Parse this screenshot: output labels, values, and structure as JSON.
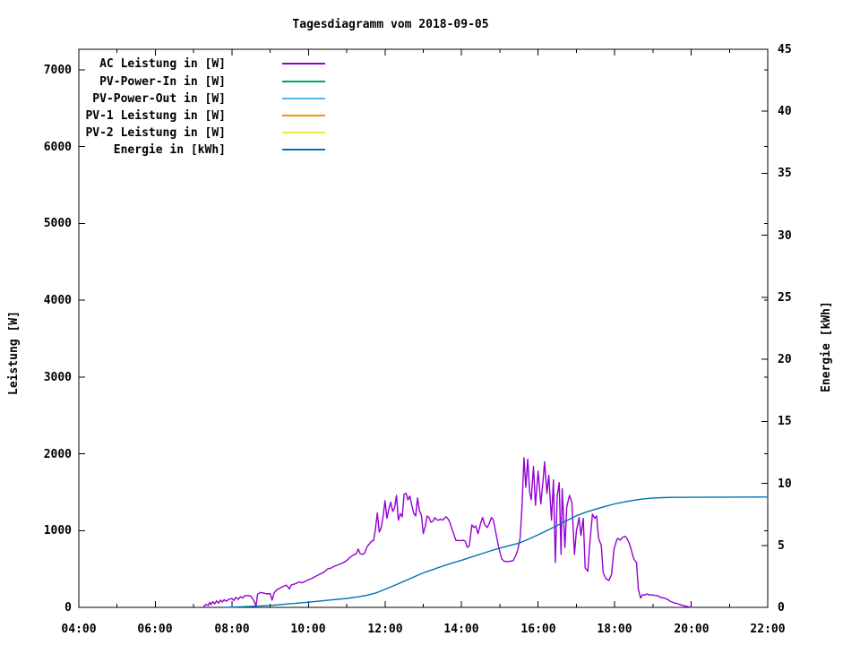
{
  "title": "Tagesdiagramm vom 2018-09-05",
  "axes": {
    "y1_label": "Leistung [W]",
    "y2_label": "Energie [kWh]",
    "y1_ticks": [
      "0",
      "1000",
      "2000",
      "3000",
      "4000",
      "5000",
      "6000",
      "7000"
    ],
    "y2_ticks": [
      "0",
      "5",
      "10",
      "15",
      "20",
      "25",
      "30",
      "35",
      "40",
      "45"
    ],
    "x_ticks": [
      "04:00",
      "06:00",
      "08:00",
      "10:00",
      "12:00",
      "14:00",
      "16:00",
      "18:00",
      "20:00",
      "22:00"
    ]
  },
  "legend": [
    {
      "label": "AC Leistung in [W]",
      "color": "#9400d3"
    },
    {
      "label": "PV-Power-In in [W]",
      "color": "#009e73"
    },
    {
      "label": "PV-Power-Out in [W]",
      "color": "#56b4e9"
    },
    {
      "label": "PV-1 Leistung in [W]",
      "color": "#e69f00"
    },
    {
      "label": "PV-2 Leistung in [W]",
      "color": "#f0e442"
    },
    {
      "label": "Energie in [kWh]",
      "color": "#0072b2"
    }
  ],
  "chart_data": {
    "type": "line",
    "title": "Tagesdiagramm vom 2018-09-05",
    "xlabel": "",
    "y1label": "Leistung [W]",
    "y2label": "Energie [kWh]",
    "x_range_hours": [
      4,
      22
    ],
    "y1_range": [
      0,
      7000
    ],
    "y2_range": [
      0,
      45
    ],
    "grid": false,
    "legend_position": "inside-top-left",
    "x_tick_labels": [
      "04:00",
      "06:00",
      "08:00",
      "10:00",
      "12:00",
      "14:00",
      "16:00",
      "18:00",
      "20:00",
      "22:00"
    ],
    "series": [
      {
        "name": "AC Leistung in [W]",
        "axis": "y1",
        "color": "#9400d3",
        "points": [
          [
            7.25,
            0
          ],
          [
            7.32,
            40
          ],
          [
            7.38,
            25
          ],
          [
            7.42,
            65
          ],
          [
            7.45,
            35
          ],
          [
            7.5,
            75
          ],
          [
            7.55,
            45
          ],
          [
            7.6,
            85
          ],
          [
            7.65,
            55
          ],
          [
            7.7,
            95
          ],
          [
            7.75,
            70
          ],
          [
            7.8,
            100
          ],
          [
            7.85,
            80
          ],
          [
            7.92,
            105
          ],
          [
            8.0,
            115
          ],
          [
            8.05,
            90
          ],
          [
            8.1,
            130
          ],
          [
            8.17,
            105
          ],
          [
            8.22,
            140
          ],
          [
            8.28,
            120
          ],
          [
            8.33,
            150
          ],
          [
            8.42,
            155
          ],
          [
            8.5,
            145
          ],
          [
            8.58,
            80
          ],
          [
            8.63,
            15
          ],
          [
            8.67,
            170
          ],
          [
            8.75,
            195
          ],
          [
            8.83,
            185
          ],
          [
            8.92,
            175
          ],
          [
            9.0,
            180
          ],
          [
            9.05,
            95
          ],
          [
            9.1,
            185
          ],
          [
            9.17,
            230
          ],
          [
            9.25,
            250
          ],
          [
            9.33,
            270
          ],
          [
            9.42,
            290
          ],
          [
            9.5,
            240
          ],
          [
            9.55,
            290
          ],
          [
            9.67,
            310
          ],
          [
            9.75,
            330
          ],
          [
            9.83,
            320
          ],
          [
            9.92,
            340
          ],
          [
            10.0,
            360
          ],
          [
            10.08,
            375
          ],
          [
            10.17,
            400
          ],
          [
            10.25,
            420
          ],
          [
            10.33,
            440
          ],
          [
            10.42,
            465
          ],
          [
            10.5,
            500
          ],
          [
            10.58,
            510
          ],
          [
            10.67,
            535
          ],
          [
            10.75,
            550
          ],
          [
            10.83,
            565
          ],
          [
            10.92,
            585
          ],
          [
            11.0,
            610
          ],
          [
            11.08,
            650
          ],
          [
            11.17,
            680
          ],
          [
            11.25,
            700
          ],
          [
            11.3,
            760
          ],
          [
            11.35,
            700
          ],
          [
            11.42,
            690
          ],
          [
            11.47,
            710
          ],
          [
            11.53,
            790
          ],
          [
            11.6,
            830
          ],
          [
            11.65,
            865
          ],
          [
            11.7,
            870
          ],
          [
            11.75,
            1020
          ],
          [
            11.8,
            1230
          ],
          [
            11.85,
            980
          ],
          [
            11.9,
            1040
          ],
          [
            11.95,
            1180
          ],
          [
            12.0,
            1390
          ],
          [
            12.05,
            1160
          ],
          [
            12.1,
            1280
          ],
          [
            12.15,
            1370
          ],
          [
            12.2,
            1250
          ],
          [
            12.25,
            1300
          ],
          [
            12.3,
            1460
          ],
          [
            12.35,
            1135
          ],
          [
            12.4,
            1220
          ],
          [
            12.45,
            1180
          ],
          [
            12.5,
            1475
          ],
          [
            12.55,
            1485
          ],
          [
            12.6,
            1400
          ],
          [
            12.65,
            1450
          ],
          [
            12.7,
            1330
          ],
          [
            12.75,
            1225
          ],
          [
            12.8,
            1190
          ],
          [
            12.85,
            1425
          ],
          [
            12.9,
            1260
          ],
          [
            12.95,
            1200
          ],
          [
            13.0,
            960
          ],
          [
            13.05,
            1050
          ],
          [
            13.1,
            1190
          ],
          [
            13.15,
            1170
          ],
          [
            13.2,
            1110
          ],
          [
            13.25,
            1120
          ],
          [
            13.3,
            1170
          ],
          [
            13.35,
            1140
          ],
          [
            13.4,
            1135
          ],
          [
            13.45,
            1150
          ],
          [
            13.5,
            1135
          ],
          [
            13.55,
            1160
          ],
          [
            13.6,
            1180
          ],
          [
            13.65,
            1150
          ],
          [
            13.7,
            1100
          ],
          [
            13.75,
            1020
          ],
          [
            13.8,
            950
          ],
          [
            13.85,
            875
          ],
          [
            13.92,
            870
          ],
          [
            14.0,
            870
          ],
          [
            14.05,
            875
          ],
          [
            14.1,
            860
          ],
          [
            14.15,
            780
          ],
          [
            14.2,
            800
          ],
          [
            14.27,
            1075
          ],
          [
            14.32,
            1040
          ],
          [
            14.37,
            1060
          ],
          [
            14.43,
            960
          ],
          [
            14.5,
            1100
          ],
          [
            14.55,
            1170
          ],
          [
            14.6,
            1080
          ],
          [
            14.67,
            1040
          ],
          [
            14.72,
            1090
          ],
          [
            14.78,
            1170
          ],
          [
            14.83,
            1140
          ],
          [
            14.9,
            960
          ],
          [
            14.97,
            780
          ],
          [
            15.05,
            630
          ],
          [
            15.12,
            600
          ],
          [
            15.2,
            595
          ],
          [
            15.27,
            600
          ],
          [
            15.35,
            610
          ],
          [
            15.42,
            680
          ],
          [
            15.47,
            750
          ],
          [
            15.53,
            900
          ],
          [
            15.58,
            1310
          ],
          [
            15.63,
            1950
          ],
          [
            15.68,
            1565
          ],
          [
            15.73,
            1930
          ],
          [
            15.78,
            1500
          ],
          [
            15.82,
            1400
          ],
          [
            15.88,
            1835
          ],
          [
            15.93,
            1330
          ],
          [
            16.0,
            1775
          ],
          [
            16.07,
            1345
          ],
          [
            16.12,
            1600
          ],
          [
            16.17,
            1895
          ],
          [
            16.23,
            1485
          ],
          [
            16.28,
            1720
          ],
          [
            16.35,
            1135
          ],
          [
            16.4,
            1660
          ],
          [
            16.45,
            585
          ],
          [
            16.5,
            1450
          ],
          [
            16.55,
            1625
          ],
          [
            16.6,
            690
          ],
          [
            16.63,
            1545
          ],
          [
            16.7,
            780
          ],
          [
            16.75,
            1310
          ],
          [
            16.82,
            1460
          ],
          [
            16.88,
            1370
          ],
          [
            16.95,
            690
          ],
          [
            17.0,
            995
          ],
          [
            17.07,
            1170
          ],
          [
            17.12,
            935
          ],
          [
            17.18,
            1160
          ],
          [
            17.23,
            515
          ],
          [
            17.3,
            470
          ],
          [
            17.35,
            820
          ],
          [
            17.42,
            1215
          ],
          [
            17.48,
            1160
          ],
          [
            17.53,
            1190
          ],
          [
            17.58,
            900
          ],
          [
            17.65,
            805
          ],
          [
            17.7,
            455
          ],
          [
            17.77,
            375
          ],
          [
            17.85,
            350
          ],
          [
            17.92,
            430
          ],
          [
            17.98,
            750
          ],
          [
            18.05,
            870
          ],
          [
            18.08,
            900
          ],
          [
            18.15,
            875
          ],
          [
            18.2,
            910
          ],
          [
            18.27,
            925
          ],
          [
            18.32,
            900
          ],
          [
            18.38,
            840
          ],
          [
            18.45,
            725
          ],
          [
            18.5,
            630
          ],
          [
            18.57,
            585
          ],
          [
            18.62,
            235
          ],
          [
            18.68,
            120
          ],
          [
            18.73,
            165
          ],
          [
            18.78,
            160
          ],
          [
            18.85,
            175
          ],
          [
            18.92,
            160
          ],
          [
            18.97,
            165
          ],
          [
            19.05,
            155
          ],
          [
            19.13,
            150
          ],
          [
            19.2,
            130
          ],
          [
            19.3,
            120
          ],
          [
            19.38,
            105
          ],
          [
            19.45,
            80
          ],
          [
            19.55,
            60
          ],
          [
            19.65,
            47
          ],
          [
            19.75,
            30
          ],
          [
            19.85,
            15
          ],
          [
            19.93,
            8
          ],
          [
            20.0,
            0
          ]
        ]
      },
      {
        "name": "PV-Power-In in [W]",
        "axis": "y1",
        "color": "#009e73",
        "points": []
      },
      {
        "name": "PV-Power-Out in [W]",
        "axis": "y1",
        "color": "#56b4e9",
        "points": []
      },
      {
        "name": "PV-1 Leistung in [W]",
        "axis": "y1",
        "color": "#e69f00",
        "points": []
      },
      {
        "name": "PV-2 Leistung in [W]",
        "axis": "y1",
        "color": "#f0e442",
        "points": []
      },
      {
        "name": "Energie in [kWh]",
        "axis": "y2",
        "color": "#0072b2",
        "points": [
          [
            7.8,
            0
          ],
          [
            8.0,
            0.02
          ],
          [
            8.5,
            0.08
          ],
          [
            9.0,
            0.16
          ],
          [
            9.5,
            0.28
          ],
          [
            10.0,
            0.42
          ],
          [
            10.5,
            0.57
          ],
          [
            11.0,
            0.72
          ],
          [
            11.25,
            0.82
          ],
          [
            11.5,
            0.95
          ],
          [
            11.75,
            1.15
          ],
          [
            12.0,
            1.45
          ],
          [
            12.25,
            1.78
          ],
          [
            12.5,
            2.1
          ],
          [
            12.75,
            2.45
          ],
          [
            13.0,
            2.78
          ],
          [
            13.25,
            3.05
          ],
          [
            13.5,
            3.32
          ],
          [
            13.75,
            3.57
          ],
          [
            14.0,
            3.8
          ],
          [
            14.25,
            4.05
          ],
          [
            14.5,
            4.3
          ],
          [
            14.75,
            4.55
          ],
          [
            15.0,
            4.78
          ],
          [
            15.25,
            4.98
          ],
          [
            15.5,
            5.18
          ],
          [
            15.75,
            5.5
          ],
          [
            16.0,
            5.85
          ],
          [
            16.25,
            6.22
          ],
          [
            16.5,
            6.6
          ],
          [
            16.75,
            7.0
          ],
          [
            17.0,
            7.38
          ],
          [
            17.25,
            7.68
          ],
          [
            17.5,
            7.92
          ],
          [
            17.75,
            8.14
          ],
          [
            18.0,
            8.34
          ],
          [
            18.25,
            8.5
          ],
          [
            18.5,
            8.64
          ],
          [
            18.75,
            8.75
          ],
          [
            19.0,
            8.82
          ],
          [
            19.25,
            8.85
          ],
          [
            19.5,
            8.87
          ],
          [
            20.0,
            8.88
          ],
          [
            21.0,
            8.89
          ],
          [
            22.0,
            8.9
          ]
        ]
      }
    ]
  }
}
